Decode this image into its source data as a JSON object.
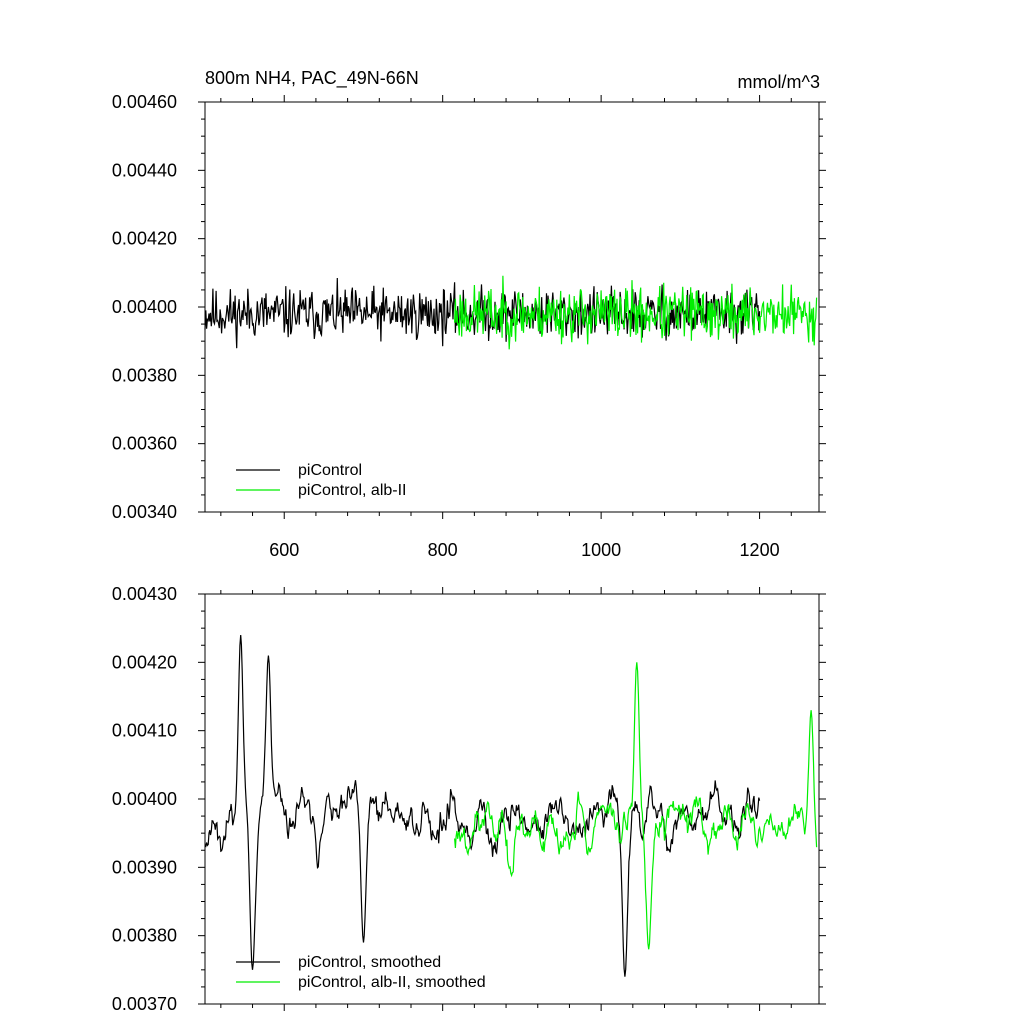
{
  "chart_data": [
    {
      "type": "line",
      "title": "800m NH4, PAC_49N-66N",
      "units_label": "mmol/m^3",
      "xlim": [
        500,
        1275
      ],
      "ylim": [
        0.0034,
        0.0046
      ],
      "x_ticks": [
        600,
        800,
        1000,
        1200
      ],
      "x_tick_labels": [
        "600",
        "800",
        "1000",
        "1200"
      ],
      "y_ticks": [
        0.0034,
        0.0036,
        0.0038,
        0.004,
        0.0042,
        0.0044,
        0.0046
      ],
      "y_tick_labels": [
        "0.00340",
        "0.00360",
        "0.00380",
        "0.00400",
        "0.00420",
        "0.00440",
        "0.00460"
      ],
      "legend_position": "bottom-left",
      "colors": {
        "piControl": "#000000",
        "alb_II": "#00ee00"
      },
      "series": [
        {
          "name": "piControl",
          "x_range": [
            500,
            1200
          ],
          "mean": 0.00398,
          "amplitude": 0.00011,
          "seed": 11
        },
        {
          "name": "piControl, alb-II",
          "x_range": [
            815,
            1272
          ],
          "mean": 0.00398,
          "amplitude": 0.00012,
          "seed": 23
        }
      ]
    },
    {
      "type": "line",
      "xlim": [
        500,
        1275
      ],
      "ylim": [
        0.0037,
        0.0043
      ],
      "x_ticks": [
        600,
        800,
        1000,
        1200
      ],
      "y_ticks": [
        0.0037,
        0.0038,
        0.0039,
        0.004,
        0.0041,
        0.0042,
        0.0043
      ],
      "y_tick_labels": [
        "0.00370",
        "0.00380",
        "0.00390",
        "0.00400",
        "0.00410",
        "0.00420",
        "0.00430"
      ],
      "legend_position": "bottom-left",
      "colors": {
        "piControl": "#000000",
        "alb_II": "#00ee00"
      },
      "series": [
        {
          "name": "piControl, smoothed",
          "x_range": [
            500,
            1200
          ],
          "mean": 0.00397,
          "amplitude": 0.00011,
          "seed": 11,
          "peaks": [
            [
              545,
              0.00424
            ],
            [
              560,
              0.00375
            ],
            [
              580,
              0.00421
            ],
            [
              700,
              0.00379
            ],
            [
              1030,
              0.00374
            ]
          ]
        },
        {
          "name": "piControl, alb-II, smoothed",
          "x_range": [
            815,
            1272
          ],
          "mean": 0.00396,
          "amplitude": 0.00011,
          "seed": 23,
          "peaks": [
            [
              1045,
              0.0042
            ],
            [
              1060,
              0.00378
            ],
            [
              1265,
              0.00413
            ]
          ]
        }
      ]
    }
  ]
}
